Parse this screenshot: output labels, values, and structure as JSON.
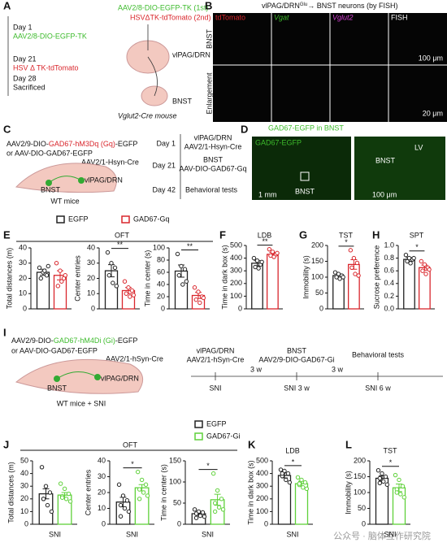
{
  "panel_labels": [
    "A",
    "B",
    "C",
    "D",
    "E",
    "F",
    "G",
    "H",
    "I",
    "J",
    "K",
    "L"
  ],
  "panel_a": {
    "timeline": [
      {
        "day": "Day 1",
        "event": "AAV2/8-DIO-EGFP-TK"
      },
      {
        "day": "Day 21",
        "event": "HSV Δ TK-tdTomato"
      },
      {
        "day": "Day 28",
        "event": "Sacrificed"
      }
    ],
    "injections": [
      "AAV2/8-DIO-EGFP-TK (1st)",
      "HSVΔTK-tdTomato (2nd)"
    ],
    "regions": [
      "vlPAG/DRN",
      "BNST"
    ],
    "mouse": "Vglut2-Cre mouse"
  },
  "panel_b": {
    "title_pre": "vlPAG/DRN",
    "title_sup": "Glu",
    "title_post": "→ BNST neurons (by FISH)",
    "columns": [
      "tdTomato",
      "Vgat",
      "Vglut2",
      "FISH"
    ],
    "rows": [
      "BNST",
      "Enlargement"
    ],
    "scales": [
      "100 μm",
      "20 μm"
    ]
  },
  "panel_c": {
    "virus_pre": "AAV2/9-DIO-",
    "virus_hl": "GAD67-hM3Dq (Gq)",
    "virus_post": "-EGFP",
    "virus_alt": "or AAV-DIO-GAD67-EGFP",
    "virus_cre": "AAV2/1-Hsyn-Cre",
    "regions": [
      "vlPAG/DRN",
      "BNST"
    ],
    "mouse": "WT mice",
    "timeline": [
      {
        "day": "Day 1",
        "event": [
          "vlPAG/DRN",
          "AAV2/1-Hsyn-Cre"
        ]
      },
      {
        "day": "Day 21",
        "event": [
          "BNST",
          "AAV-DIO-GAD67-Gq"
        ]
      },
      {
        "day": "Day 42",
        "event": [
          "Behavioral tests"
        ]
      }
    ]
  },
  "panel_d": {
    "title": "GAD67-EGFP in BNST",
    "inset_label": "GAD67-EGFP",
    "region": "BNST",
    "ventricle": "LV",
    "zoom_region": "BNST",
    "scales": [
      "1 mm",
      "100 μm"
    ]
  },
  "panel_i": {
    "virus_pre": "AAV2/9-DIO-",
    "virus_hl": "GAD67-hM4Di (Gi)",
    "virus_post": "-EGFP",
    "virus_alt": "or AAV-DIO-GAD67-EGFP",
    "virus_cre": "AAV2/1-hSyn-Cre",
    "regions": [
      "vlPAG/DRN",
      "BNST"
    ],
    "mouse": "WT mice + SNI",
    "steps": [
      [
        "vlPAG/DRN",
        "AAV2/1-hSyn-Cre"
      ],
      [
        "BNST",
        "AAV2/9-DIO-GAD67-Gi"
      ],
      [
        "Behavioral tests"
      ]
    ],
    "marks": [
      "SNI",
      "SNI 3 w",
      "SNI 6 w"
    ],
    "intervals": [
      "3 w",
      "3 w"
    ]
  },
  "group_titles": [
    "OFT",
    "OFT"
  ],
  "legends": [
    [
      {
        "name": "EGFP",
        "color": "#222222"
      },
      {
        "name": "GAD67-Gq",
        "color": "#d9262c"
      }
    ],
    [
      {
        "name": "EGFP",
        "color": "#222222"
      },
      {
        "name": "GAD67-Gi",
        "color": "#5fd13a"
      }
    ]
  ],
  "watermark": "公众号 · 脑体互作研究院",
  "chart_data": [
    {
      "type": "bar",
      "ylabel": "Total distances (m)",
      "colors": [
        "#222222",
        "#d9262c"
      ],
      "values": [
        24,
        22
      ],
      "errors": [
        2,
        3
      ],
      "points": [
        [
          27,
          24,
          22,
          20,
          25,
          28
        ],
        [
          30,
          25,
          20,
          15,
          18,
          22
        ]
      ],
      "ylim": [
        0,
        40
      ],
      "yticks": [
        0,
        10,
        20,
        30,
        40
      ]
    },
    {
      "type": "bar",
      "ylabel": "Center entries",
      "colors": [
        "#222222",
        "#d9262c"
      ],
      "values": [
        25,
        12
      ],
      "errors": [
        4,
        2
      ],
      "points": [
        [
          37,
          30,
          27,
          22,
          17,
          15
        ],
        [
          18,
          14,
          12,
          10,
          8,
          9
        ]
      ],
      "ylim": [
        0,
        40
      ],
      "yticks": [
        0,
        10,
        20,
        30,
        40
      ],
      "significance": "**"
    },
    {
      "type": "bar",
      "ylabel": "Time in center (s)",
      "colors": [
        "#222222",
        "#d9262c"
      ],
      "values": [
        62,
        22
      ],
      "errors": [
        10,
        5
      ],
      "points": [
        [
          90,
          70,
          65,
          55,
          40,
          45
        ],
        [
          35,
          28,
          20,
          15,
          10,
          18
        ]
      ],
      "ylim": [
        0,
        100
      ],
      "yticks": [
        0,
        20,
        40,
        60,
        80,
        100
      ],
      "significance": "**"
    },
    {
      "type": "bar",
      "title": "LDB",
      "ylabel": "Time in dark box (s)",
      "colors": [
        "#222222",
        "#d9262c"
      ],
      "values": [
        360,
        430
      ],
      "errors": [
        20,
        15
      ],
      "points": [
        [
          400,
          380,
          350,
          330,
          320,
          370
        ],
        [
          470,
          450,
          430,
          420,
          410,
          440
        ]
      ],
      "ylim": [
        0,
        500
      ],
      "yticks": [
        0,
        100,
        200,
        300,
        400,
        500
      ],
      "significance": "**"
    },
    {
      "type": "bar",
      "title": "TST",
      "ylabel": "Immobility (s)",
      "colors": [
        "#222222",
        "#d9262c"
      ],
      "values": [
        105,
        140
      ],
      "errors": [
        5,
        15
      ],
      "points": [
        [
          115,
          110,
          105,
          100,
          95,
          100
        ],
        [
          185,
          160,
          145,
          130,
          110,
          105
        ]
      ],
      "ylim": [
        0,
        200
      ],
      "yticks": [
        0,
        50,
        100,
        150,
        200
      ],
      "significance": "*"
    },
    {
      "type": "bar",
      "title": "SPT",
      "ylabel": "Sucrose preference",
      "colors": [
        "#222222",
        "#d9262c"
      ],
      "values": [
        0.78,
        0.65
      ],
      "errors": [
        0.03,
        0.04
      ],
      "points": [
        [
          0.85,
          0.8,
          0.78,
          0.75,
          0.72,
          0.8
        ],
        [
          0.75,
          0.7,
          0.65,
          0.6,
          0.55,
          0.62
        ]
      ],
      "ylim": [
        0,
        1
      ],
      "yticks": [
        {
          "value": 0,
          "label": "0.0"
        },
        0.2,
        0.4,
        0.6,
        0.8,
        {
          "value": 1,
          "label": "1.0"
        }
      ],
      "significance": "*"
    },
    {
      "type": "bar",
      "ylabel": "Total distances (m)",
      "xlabel": "SNI",
      "colors": [
        "#222222",
        "#5fd13a"
      ],
      "values": [
        24,
        23
      ],
      "errors": [
        4,
        2
      ],
      "points": [
        [
          45,
          30,
          25,
          20,
          15,
          10,
          20
        ],
        [
          32,
          28,
          24,
          22,
          20,
          18,
          21
        ]
      ],
      "ylim": [
        0,
        50
      ],
      "yticks": [
        0,
        10,
        20,
        30,
        40,
        50
      ]
    },
    {
      "type": "bar",
      "ylabel": "Center entries",
      "xlabel": "SNI",
      "colors": [
        "#222222",
        "#5fd13a"
      ],
      "values": [
        14,
        23
      ],
      "errors": [
        3,
        2
      ],
      "points": [
        [
          25,
          18,
          15,
          12,
          10,
          8,
          5
        ],
        [
          33,
          28,
          25,
          22,
          20,
          18,
          16
        ]
      ],
      "ylim": [
        0,
        40
      ],
      "yticks": [
        0,
        10,
        20,
        30,
        40
      ],
      "significance": "*"
    },
    {
      "type": "bar",
      "ylabel": "Time in center (s)",
      "xlabel": "SNI",
      "colors": [
        "#222222",
        "#5fd13a"
      ],
      "values": [
        25,
        58
      ],
      "errors": [
        4,
        13
      ],
      "points": [
        [
          35,
          30,
          28,
          25,
          20,
          18,
          15
        ],
        [
          120,
          80,
          60,
          50,
          40,
          35,
          30
        ]
      ],
      "ylim": [
        0,
        150
      ],
      "yticks": [
        0,
        50,
        100,
        150
      ],
      "significance": "*"
    },
    {
      "type": "bar",
      "title": "LDB",
      "ylabel": "Time in dark box (s)",
      "xlabel": "SNI",
      "colors": [
        "#222222",
        "#5fd13a"
      ],
      "values": [
        385,
        320
      ],
      "errors": [
        20,
        20
      ],
      "points": [
        [
          430,
          420,
          400,
          380,
          350,
          330,
          400
        ],
        [
          370,
          350,
          330,
          310,
          290,
          280,
          320
        ]
      ],
      "ylim": [
        0,
        500
      ],
      "yticks": [
        0,
        100,
        200,
        300,
        400,
        500
      ],
      "significance": "*"
    },
    {
      "type": "bar",
      "title": "TST",
      "ylabel": "Immobility (s)",
      "xlabel": "SNI",
      "colors": [
        "#222222",
        "#5fd13a"
      ],
      "values": [
        145,
        115
      ],
      "errors": [
        8,
        12
      ],
      "points": [
        [
          170,
          160,
          150,
          145,
          135,
          125,
          130
        ],
        [
          155,
          140,
          120,
          110,
          95,
          85,
          100
        ]
      ],
      "ylim": [
        0,
        200
      ],
      "yticks": [
        0,
        50,
        100,
        150,
        200
      ],
      "significance": "*"
    }
  ]
}
